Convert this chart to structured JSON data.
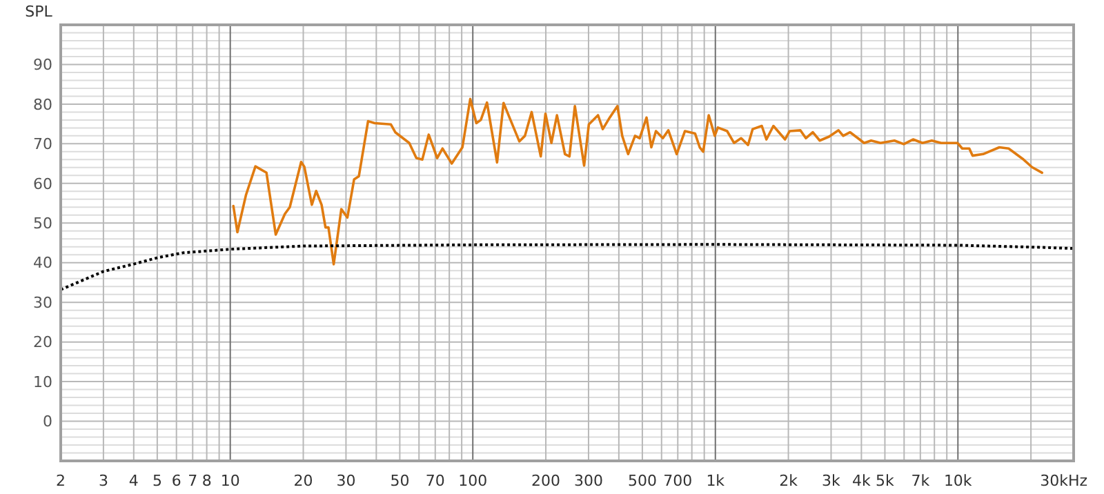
{
  "chart_data": {
    "type": "line",
    "ylabel": "SPL",
    "xlabel": "Hz",
    "log": "x",
    "grid": true,
    "xlim": [
      2,
      30000
    ],
    "ylim": [
      -10,
      100
    ],
    "xticks": [
      2,
      3,
      4,
      5,
      6,
      7,
      8,
      {
        "value": 9,
        "label": null
      },
      10,
      20,
      30,
      {
        "value": 40,
        "label": null
      },
      50,
      {
        "value": 60,
        "label": null
      },
      70,
      {
        "value": 80,
        "label": null
      },
      {
        "value": 90,
        "label": null
      },
      100,
      200,
      300,
      {
        "value": 400,
        "label": null
      },
      500,
      {
        "value": 600,
        "label": null
      },
      700,
      {
        "value": 800,
        "label": null
      },
      {
        "value": 900,
        "label": null
      },
      {
        "value": 1000,
        "label": "1k"
      },
      {
        "value": 2000,
        "label": "2k"
      },
      {
        "value": 3000,
        "label": "3k"
      },
      {
        "value": 4000,
        "label": "4k"
      },
      {
        "value": 5000,
        "label": "5k"
      },
      {
        "value": 6000,
        "label": null
      },
      {
        "value": 7000,
        "label": "7k"
      },
      {
        "value": 8000,
        "label": null
      },
      {
        "value": 9000,
        "label": null
      },
      {
        "value": 10000,
        "label": "10k"
      },
      {
        "value": 20000,
        "label": null
      },
      {
        "value": 30000,
        "label": "30k"
      }
    ],
    "yticks": [
      {
        "value": -8,
        "label": null
      },
      {
        "value": -6,
        "label": null
      },
      {
        "value": -4,
        "label": null
      },
      {
        "value": -2,
        "label": null
      },
      0,
      {
        "value": 2,
        "label": null
      },
      {
        "value": 4,
        "label": null
      },
      {
        "value": 6,
        "label": null
      },
      {
        "value": 8,
        "label": null
      },
      10,
      {
        "value": 12,
        "label": null
      },
      {
        "value": 14,
        "label": null
      },
      {
        "value": 16,
        "label": null
      },
      {
        "value": 18,
        "label": null
      },
      20,
      {
        "value": 22,
        "label": null
      },
      {
        "value": 24,
        "label": null
      },
      {
        "value": 26,
        "label": null
      },
      {
        "value": 28,
        "label": null
      },
      30,
      {
        "value": 32,
        "label": null
      },
      {
        "value": 34,
        "label": null
      },
      {
        "value": 36,
        "label": null
      },
      {
        "value": 38,
        "label": null
      },
      40,
      {
        "value": 42,
        "label": null
      },
      {
        "value": 44,
        "label": null
      },
      {
        "value": 46,
        "label": null
      },
      {
        "value": 48,
        "label": null
      },
      50,
      {
        "value": 52,
        "label": null
      },
      {
        "value": 54,
        "label": null
      },
      {
        "value": 56,
        "label": null
      },
      {
        "value": 58,
        "label": null
      },
      60,
      {
        "value": 62,
        "label": null
      },
      {
        "value": 64,
        "label": null
      },
      {
        "value": 66,
        "label": null
      },
      {
        "value": 68,
        "label": null
      },
      70,
      {
        "value": 72,
        "label": null
      },
      {
        "value": 74,
        "label": null
      },
      {
        "value": 76,
        "label": null
      },
      {
        "value": 78,
        "label": null
      },
      80,
      {
        "value": 82,
        "label": null
      },
      {
        "value": 84,
        "label": null
      },
      {
        "value": 86,
        "label": null
      },
      {
        "value": 88,
        "label": null
      },
      90,
      {
        "value": 92,
        "label": null
      },
      {
        "value": 94,
        "label": null
      },
      {
        "value": 96,
        "label": null
      },
      {
        "value": 98,
        "label": null
      }
    ],
    "series": [
      {
        "color": "#e07b10",
        "line_style": "solid",
        "x": [
          10.3,
          10.7,
          11.6,
          12.7,
          14.1,
          15.4,
          16.8,
          17.6,
          19.6,
          20.2,
          21.7,
          22.6,
          23.8,
          24.7,
          25.4,
          26.7,
          28.7,
          30.4,
          32.4,
          33.9,
          37,
          39.4,
          45.9,
          47.9,
          54.7,
          58.5,
          61.9,
          65.8,
          71.3,
          75,
          81.9,
          90.6,
          97.6,
          103.4,
          107.9,
          114.4,
          125.9,
          133.9,
          143,
          155.5,
          164,
          174.8,
          190.6,
          199.3,
          210.9,
          222.3,
          239.8,
          250.3,
          263.5,
          287.7,
          300.9,
          328.3,
          343.4,
          366.8,
          394.7,
          413,
          436.8,
          466.6,
          487.5,
          520.4,
          544.5,
          568.9,
          607.5,
          640,
          692.8,
          749.3,
          824.6,
          862,
          891,
          939,
          994,
          1024,
          1118,
          1194,
          1277,
          1364,
          1425,
          1554,
          1624,
          1735,
          1937,
          2025,
          2240,
          2361,
          2522,
          2694,
          2944,
          3219,
          3365,
          3594,
          3928,
          4104,
          4388,
          4795,
          5473,
          5980,
          6535,
          7142,
          7804,
          8529,
          9960,
          10420,
          11140,
          11490,
          12710,
          14820,
          16190,
          18490,
          20200,
          22230
        ],
        "values": [
          54.3,
          47.7,
          57,
          64.3,
          62.7,
          47.1,
          52.3,
          54,
          65.4,
          64.2,
          54.6,
          58.1,
          54.6,
          48.9,
          48.9,
          39.6,
          53.5,
          51.4,
          61,
          61.8,
          75.7,
          75.2,
          74.9,
          72.9,
          70.2,
          66.4,
          66,
          72.3,
          66.4,
          68.8,
          65,
          69.1,
          81.3,
          75.2,
          76,
          80.4,
          65.3,
          80.3,
          76,
          70.6,
          72,
          78,
          66.8,
          77.6,
          70.2,
          77.2,
          67.4,
          66.8,
          79.5,
          64.5,
          74.9,
          77.2,
          73.7,
          76.6,
          79.5,
          72,
          67.4,
          72,
          71.4,
          76.6,
          69.1,
          73.2,
          71.4,
          73.4,
          67.4,
          73.2,
          72.6,
          69.1,
          68,
          77.2,
          72,
          74.1,
          73.2,
          70.2,
          71.4,
          69.7,
          73.7,
          74.5,
          71.1,
          74.5,
          71.1,
          73.2,
          73.4,
          71.4,
          72.9,
          70.8,
          71.8,
          73.4,
          72,
          72.9,
          71.1,
          70.2,
          70.8,
          70.2,
          70.8,
          69.9,
          71.1,
          70.2,
          70.8,
          70.2,
          70.2,
          68.8,
          68.8,
          67,
          67.4,
          69.1,
          68.8,
          66.2,
          64.1,
          62.7
        ]
      },
      {
        "color": "#000000",
        "line_style": "dotted",
        "x": [
          2,
          3,
          3.97,
          5.05,
          6.4,
          10,
          20,
          100,
          1000,
          10000,
          21000,
          30000
        ],
        "values": [
          33.2,
          37.8,
          39.6,
          41.3,
          42.5,
          43.4,
          44.2,
          44.5,
          44.6,
          44.4,
          43.9,
          43.6
        ]
      }
    ]
  }
}
